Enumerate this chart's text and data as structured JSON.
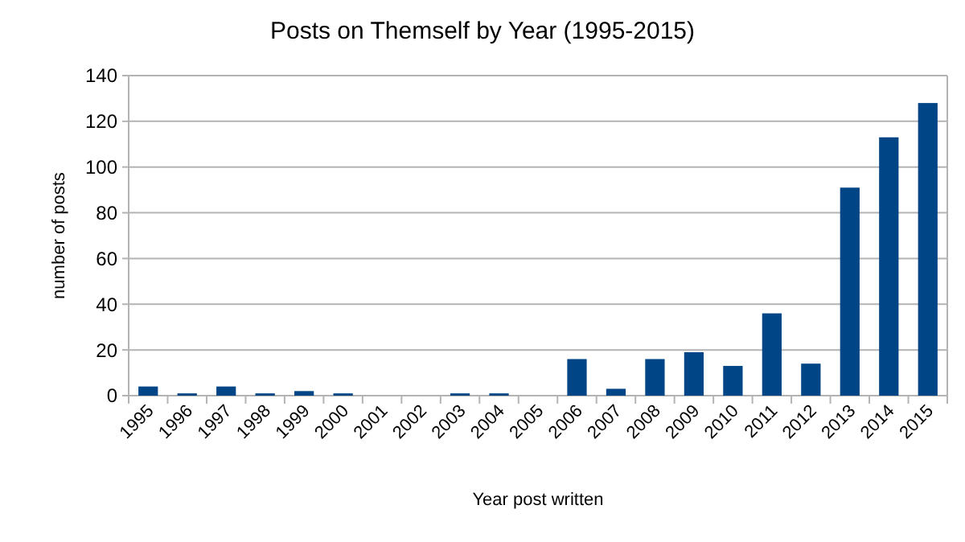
{
  "chart_data": {
    "type": "bar",
    "title": "Posts on Themself by Year (1995-2015)",
    "xlabel": "Year post written",
    "ylabel": "number of posts",
    "categories": [
      "1995",
      "1996",
      "1997",
      "1998",
      "1999",
      "2000",
      "2001",
      "2002",
      "2003",
      "2004",
      "2005",
      "2006",
      "2007",
      "2008",
      "2009",
      "2010",
      "2011",
      "2012",
      "2013",
      "2014",
      "2015"
    ],
    "values": [
      4,
      1,
      4,
      1,
      2,
      1,
      0,
      0,
      1,
      1,
      0,
      16,
      3,
      16,
      19,
      13,
      36,
      14,
      91,
      113,
      128
    ],
    "color": "#004586",
    "ylim": [
      0,
      140
    ],
    "yticks": [
      0,
      20,
      40,
      60,
      80,
      100,
      120,
      140
    ],
    "grid": "y"
  }
}
